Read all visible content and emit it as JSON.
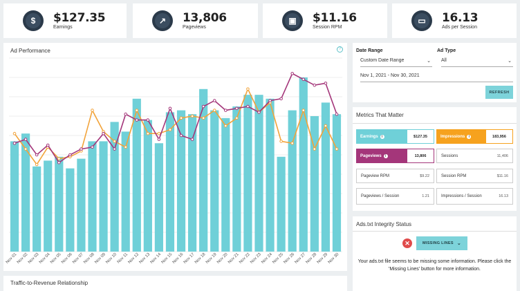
{
  "stats": [
    {
      "icon": "dollar-icon",
      "glyph": "$",
      "value": "$127.35",
      "label": "Earnings"
    },
    {
      "icon": "trend-icon",
      "glyph": "↗",
      "value": "13,806",
      "label": "Pageviews"
    },
    {
      "icon": "page-icon",
      "glyph": "▣",
      "value": "$11.16",
      "label": "Session RPM"
    },
    {
      "icon": "ad-window-icon",
      "glyph": "▭",
      "value": "16.13",
      "label": "Ads per Session"
    }
  ],
  "ad_performance": {
    "title": "Ad Performance",
    "help": "?"
  },
  "chart_data": {
    "type": "bar",
    "categories": [
      "Nov 01",
      "Nov 02",
      "Nov 03",
      "Nov 04",
      "Nov 05",
      "Nov 06",
      "Nov 07",
      "Nov 08",
      "Nov 09",
      "Nov 10",
      "Nov 11",
      "Nov 12",
      "Nov 13",
      "Nov 14",
      "Nov 15",
      "Nov 16",
      "Nov 17",
      "Nov 18",
      "Nov 19",
      "Nov 20",
      "Nov 21",
      "Nov 22",
      "Nov 23",
      "Nov 24",
      "Nov 25",
      "Nov 26",
      "Nov 27",
      "Nov 28",
      "Nov 29",
      "Nov 30"
    ],
    "series": [
      {
        "kind": "bar",
        "color": "#6fd0d8",
        "values": [
          57,
          61,
          44,
          47,
          49,
          43,
          48,
          57,
          57,
          67,
          62,
          79,
          68,
          56,
          72,
          73,
          71,
          84,
          73,
          69,
          75,
          81,
          81,
          79,
          49,
          73,
          90,
          70,
          77,
          71
        ]
      },
      {
        "kind": "line",
        "color": "#f2a33a",
        "values": [
          61,
          53,
          45,
          54,
          48,
          49,
          52,
          73,
          62,
          57,
          54,
          73,
          61,
          61,
          63,
          69,
          70,
          69,
          73,
          65,
          69,
          84,
          72,
          77,
          57,
          56,
          73,
          53,
          65,
          53
        ]
      },
      {
        "kind": "line",
        "color": "#a4367a",
        "values": [
          56,
          58,
          50,
          55,
          46,
          50,
          53,
          54,
          61,
          53,
          71,
          68,
          68,
          58,
          74,
          60,
          58,
          75,
          78,
          73,
          74,
          75,
          72,
          78,
          79,
          92,
          89,
          86,
          87,
          71
        ]
      }
    ],
    "ylim": [
      0,
      100
    ],
    "grid": true,
    "title": "",
    "xlabel": "",
    "ylabel": ""
  },
  "traffic": {
    "title": "Traffic-to-Revenue Relationship"
  },
  "filters": {
    "date_label": "Date Range",
    "date_value": "Custom Date Range",
    "date_range_text": "Nov 1, 2021 - Nov 30, 2021",
    "adtype_label": "Ad Type",
    "adtype_value": "All",
    "refresh_label": "REFRESH"
  },
  "metrics": {
    "title": "Metrics That Matter",
    "earnings": {
      "name": "Earnings",
      "value": "$127.35",
      "color": "#6fd0d8"
    },
    "impressions": {
      "name": "Impressions",
      "value": "183,956",
      "color": "#f6a21e"
    },
    "pageviews": {
      "name": "Pageviews",
      "value": "13,806",
      "color": "#a4367a"
    },
    "sessions": {
      "name": "Sessions",
      "value": "11,406"
    },
    "pageview_rpm": {
      "name": "Pageview RPM",
      "value": "$9.22"
    },
    "session_rpm": {
      "name": "Session RPM",
      "value": "$11.16"
    },
    "pv_session": {
      "name": "Pageviews / Session",
      "value": "1.21"
    },
    "imp_session": {
      "name": "Impressions / Session",
      "value": "16.13"
    }
  },
  "adstxt": {
    "title": "Ads.txt Integrity Status",
    "button": "MISSING LINES",
    "message": "Your ads.txt file seems to be missing some information. Please click the 'Missing Lines' button for more information."
  }
}
